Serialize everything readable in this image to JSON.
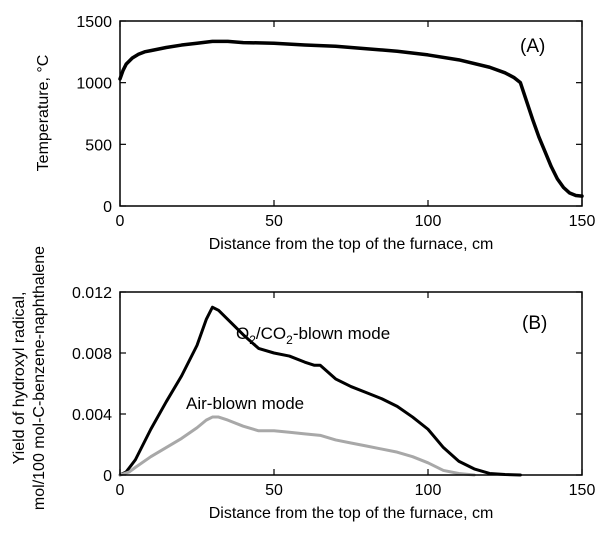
{
  "chart_data": [
    {
      "type": "line",
      "panel_tag": "(A)",
      "title": "",
      "xlabel": "Distance from the top of the furnace, cm",
      "ylabel": "Temperature, °C",
      "xlim": [
        0,
        150
      ],
      "ylim": [
        0,
        1500
      ],
      "xticks": [
        0,
        50,
        100,
        150
      ],
      "yticks": [
        0,
        500,
        1000,
        1500
      ],
      "grid": false,
      "legend": "none",
      "series": [
        {
          "color": "#000000",
          "x": [
            0,
            1,
            2,
            4,
            6,
            8,
            10,
            15,
            20,
            25,
            30,
            35,
            40,
            50,
            60,
            70,
            80,
            90,
            100,
            110,
            120,
            125,
            128,
            130,
            132,
            134,
            136,
            138,
            140,
            142,
            144,
            146,
            148,
            150
          ],
          "y": [
            1030,
            1100,
            1150,
            1200,
            1230,
            1250,
            1260,
            1285,
            1305,
            1320,
            1335,
            1335,
            1325,
            1320,
            1305,
            1295,
            1275,
            1255,
            1225,
            1185,
            1125,
            1080,
            1040,
            1000,
            850,
            700,
            560,
            440,
            320,
            220,
            150,
            105,
            85,
            80
          ]
        }
      ]
    },
    {
      "type": "line",
      "panel_tag": "(B)",
      "title": "",
      "xlabel": "Distance from the top of the furnace, cm",
      "ylabel_line1": "Yield of hydroxyl radical,",
      "ylabel_line2": "mol/100 mol-C-benzene-naphthalene",
      "xlim": [
        0,
        150
      ],
      "ylim": [
        0,
        0.012
      ],
      "xticks": [
        0,
        50,
        100,
        150
      ],
      "yticks": [
        0,
        0.004,
        0.008,
        0.012
      ],
      "ytick_labels": [
        "0",
        "0.004",
        "0.008",
        "0.012"
      ],
      "grid": false,
      "legend": "inline",
      "series": [
        {
          "name_main": "O",
          "name_sub1": "2",
          "name_mid": "/CO",
          "name_sub2": "2",
          "name_tail": "-blown mode",
          "color": "#000000",
          "x": [
            0,
            2,
            5,
            10,
            15,
            20,
            25,
            28,
            30,
            32,
            35,
            40,
            45,
            50,
            55,
            60,
            63,
            65,
            70,
            75,
            80,
            85,
            90,
            95,
            100,
            105,
            110,
            115,
            120,
            125,
            130
          ],
          "y": [
            0,
            0.0002,
            0.001,
            0.003,
            0.0048,
            0.0065,
            0.0085,
            0.0102,
            0.011,
            0.0108,
            0.0102,
            0.0092,
            0.0083,
            0.008,
            0.0078,
            0.0074,
            0.0072,
            0.0072,
            0.0063,
            0.0058,
            0.0054,
            0.005,
            0.0045,
            0.0038,
            0.003,
            0.0018,
            0.0009,
            0.0004,
            0.0001,
            3e-05,
            0
          ]
        },
        {
          "name": "Air-blown mode",
          "color": "#a8a8a8",
          "x": [
            0,
            3,
            5,
            10,
            15,
            20,
            25,
            28,
            30,
            32,
            35,
            40,
            45,
            50,
            55,
            60,
            65,
            70,
            75,
            80,
            85,
            90,
            95,
            100,
            105,
            110,
            115
          ],
          "y": [
            0,
            0.0002,
            0.0005,
            0.0012,
            0.0018,
            0.0024,
            0.0031,
            0.0036,
            0.0038,
            0.0038,
            0.0036,
            0.0032,
            0.0029,
            0.0029,
            0.0028,
            0.0027,
            0.0026,
            0.0023,
            0.0021,
            0.0019,
            0.0017,
            0.0015,
            0.0012,
            0.0008,
            0.0003,
            0.0001,
            0
          ]
        }
      ]
    }
  ]
}
